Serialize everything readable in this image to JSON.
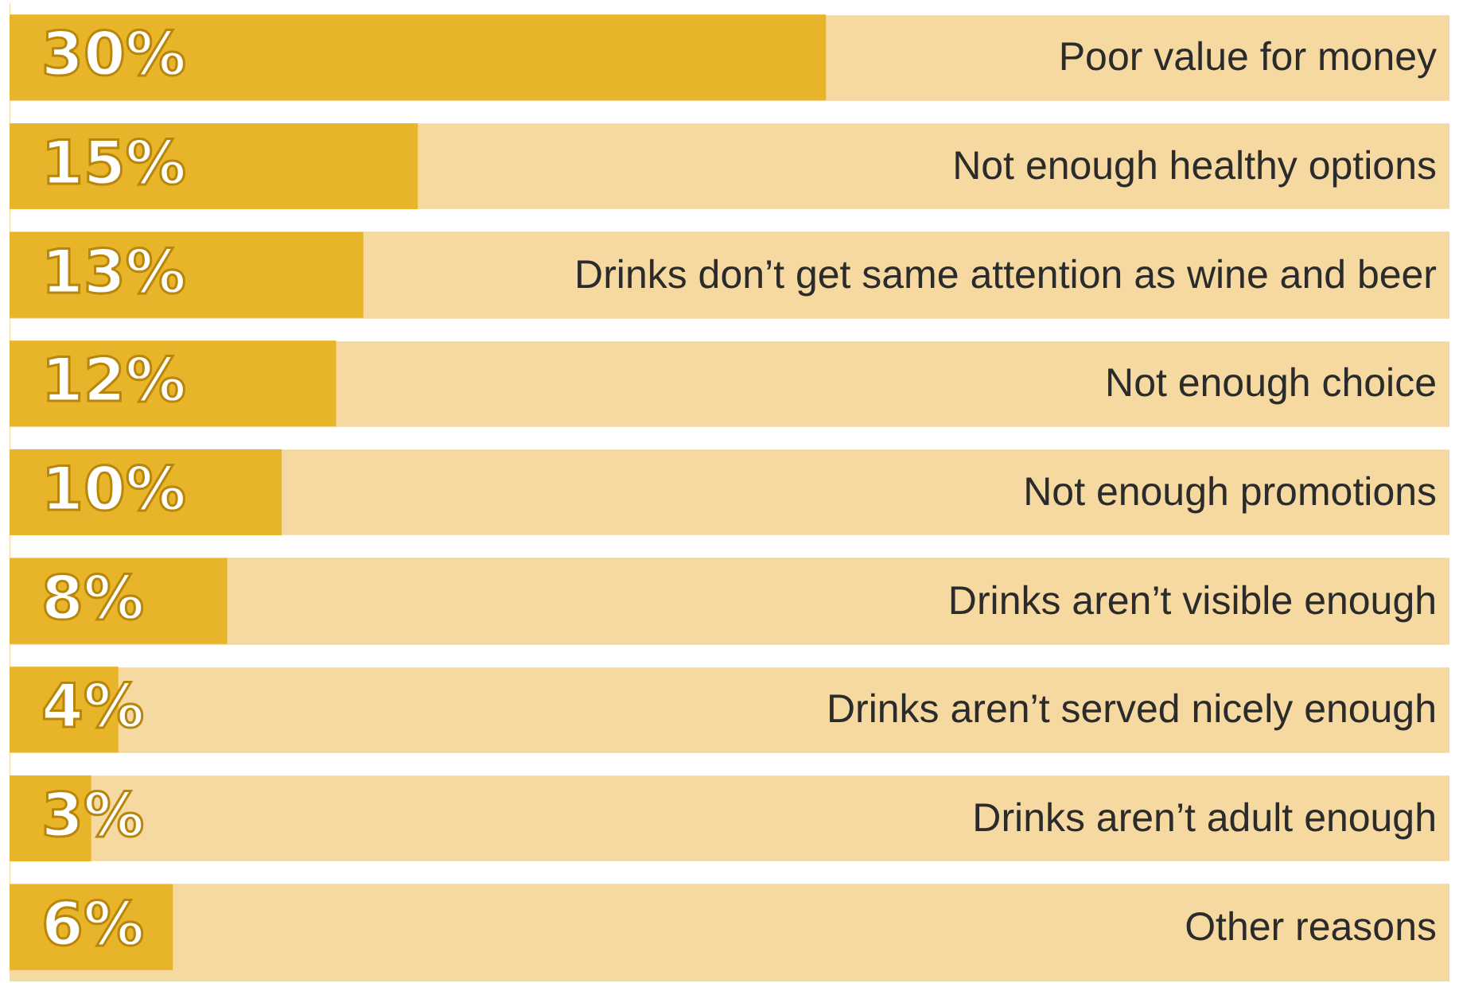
{
  "chart_data": {
    "type": "bar",
    "orientation": "horizontal",
    "tick_labels": false,
    "categories": [
      "Poor value for money",
      "Not enough healthy options",
      "Drinks don’t get same attention as wine and beer",
      "Not enough choice",
      "Not enough promotions",
      "Drinks aren’t visible enough",
      "Drinks aren’t served nicely enough",
      "Drinks aren’t adult enough",
      "Other reasons"
    ],
    "values": [
      30,
      15,
      13,
      12,
      10,
      8,
      4,
      3,
      6
    ],
    "value_labels": [
      "30%",
      "15%",
      "13%",
      "12%",
      "10%",
      "8%",
      "4%",
      "3%",
      "6%"
    ],
    "color": "#e8b52a"
  }
}
